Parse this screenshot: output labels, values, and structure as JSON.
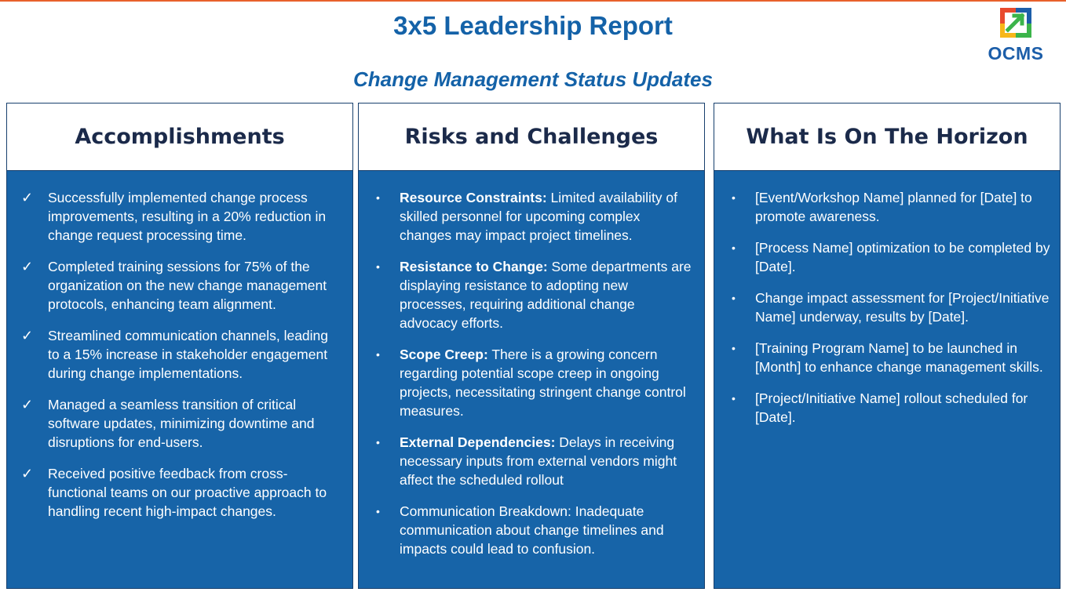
{
  "header": {
    "title": "3x5 Leadership Report",
    "subtitle": "Change Management Status Updates",
    "logo_text": "OCMS",
    "logo_colors": [
      "#e84a2e",
      "#1c5ea9",
      "#3bb44a",
      "#f7b719"
    ]
  },
  "columns": [
    {
      "heading": "Accomplishments",
      "marker": "✓",
      "items": [
        {
          "bold": "",
          "text": "Successfully implemented change process improvements, resulting in a 20% reduction in change request processing time."
        },
        {
          "bold": "",
          "text": "Completed training sessions for 75% of the organization on the new change management protocols, enhancing team alignment."
        },
        {
          "bold": "",
          "text": "Streamlined communication channels, leading to a 15% increase in stakeholder engagement during change implementations."
        },
        {
          "bold": "",
          "text": "Managed a seamless transition of critical software updates, minimizing downtime and disruptions for end-users."
        },
        {
          "bold": "",
          "text": "Received positive feedback from cross-functional teams on our proactive approach to handling recent high-impact changes."
        }
      ]
    },
    {
      "heading": "Risks and Challenges",
      "marker": "•",
      "items": [
        {
          "bold": "Resource Constraints:",
          "text": " Limited availability of skilled personnel for upcoming complex changes may impact project timelines."
        },
        {
          "bold": "Resistance to Change:",
          "text": " Some departments are displaying resistance to adopting new processes, requiring additional change advocacy efforts."
        },
        {
          "bold": "Scope Creep:",
          "text": " There is a growing concern regarding potential scope creep in ongoing projects, necessitating stringent change control measures."
        },
        {
          "bold": "External Dependencies:",
          "text": " Delays in receiving necessary inputs from external vendors might affect the scheduled rollout"
        },
        {
          "bold": "",
          "text": "Communication Breakdown: Inadequate communication about change timelines and impacts could lead to confusion."
        }
      ]
    },
    {
      "heading": "What Is On The Horizon",
      "marker": "•",
      "items": [
        {
          "bold": "",
          "text": "[Event/Workshop Name] planned for [Date] to promote awareness."
        },
        {
          "bold": "",
          "text": "[Process Name] optimization to be completed by [Date]."
        },
        {
          "bold": "",
          "text": "Change impact assessment for [Project/Initiative Name] underway, results by [Date]."
        },
        {
          "bold": "",
          "text": "[Training Program Name] to be launched in [Month] to enhance change management skills."
        },
        {
          "bold": "",
          "text": "[Project/Initiative Name] rollout scheduled for [Date]."
        }
      ]
    }
  ]
}
